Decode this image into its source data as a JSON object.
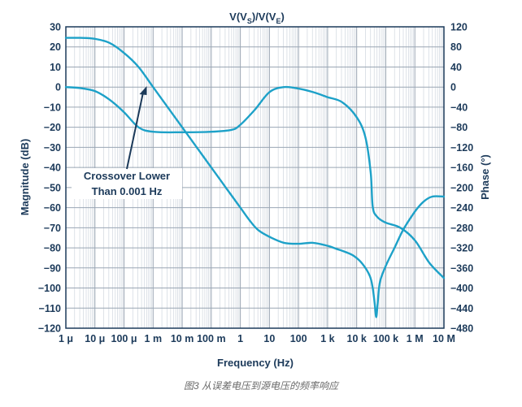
{
  "chart_data": {
    "type": "line",
    "title_parts": [
      "V(V",
      "S",
      ")/V(V",
      "E",
      ")"
    ],
    "xlabel": "Frequency (Hz)",
    "ylabel_left": "Magnitude (dB)",
    "ylabel_right": "Phase (°)",
    "x_scale": "log10",
    "xlim_exp": [
      -6,
      7
    ],
    "x_ticks": [
      {
        "exp": -6,
        "label": "1 μ"
      },
      {
        "exp": -5,
        "label": "10 μ"
      },
      {
        "exp": -4,
        "label": "100 μ"
      },
      {
        "exp": -3,
        "label": "1 m"
      },
      {
        "exp": -2,
        "label": "10 m"
      },
      {
        "exp": -1,
        "label": "100 m"
      },
      {
        "exp": 0,
        "label": "1"
      },
      {
        "exp": 1,
        "label": "10"
      },
      {
        "exp": 2,
        "label": "100"
      },
      {
        "exp": 3,
        "label": "1 k"
      },
      {
        "exp": 4,
        "label": "10 k"
      },
      {
        "exp": 5,
        "label": "100 k"
      },
      {
        "exp": 6,
        "label": "1 M"
      },
      {
        "exp": 7,
        "label": "10 M"
      }
    ],
    "ylim_left": [
      -120,
      30
    ],
    "y_ticks_left": [
      "30",
      "20",
      "10",
      "0",
      "−10",
      "−20",
      "−30",
      "−40",
      "−50",
      "−60",
      "−70",
      "−80",
      "−90",
      "−100",
      "−110",
      "−120"
    ],
    "ylim_right": [
      -480,
      120
    ],
    "y_ticks_right": [
      "120",
      "80",
      "40",
      "0",
      "−40",
      "−80",
      "−120",
      "−160",
      "−200",
      "−240",
      "−280",
      "−320",
      "−360",
      "−400",
      "−440",
      "−480"
    ],
    "grid": true,
    "line_color": "#1da1c8",
    "series": [
      {
        "name": "Magnitude",
        "axis": "left",
        "points": [
          [
            -6,
            24.5
          ],
          [
            -5.5,
            24.5
          ],
          [
            -5,
            24
          ],
          [
            -4.5,
            22
          ],
          [
            -4,
            17
          ],
          [
            -3.5,
            10
          ],
          [
            -3,
            0
          ],
          [
            -2.5,
            -10
          ],
          [
            -2,
            -20
          ],
          [
            -1.5,
            -30
          ],
          [
            -1,
            -40
          ],
          [
            -0.5,
            -50
          ],
          [
            0,
            -60
          ],
          [
            0.3,
            -66
          ],
          [
            0.6,
            -71
          ],
          [
            1,
            -74.5
          ],
          [
            1.5,
            -77.5
          ],
          [
            2,
            -78
          ],
          [
            2.5,
            -77.5
          ],
          [
            3,
            -79
          ],
          [
            3.3,
            -80.5
          ],
          [
            3.6,
            -82
          ],
          [
            3.9,
            -84
          ],
          [
            4.2,
            -88
          ],
          [
            4.45,
            -94
          ],
          [
            4.55,
            -100
          ],
          [
            4.62,
            -108
          ],
          [
            4.67,
            -114.5
          ],
          [
            4.72,
            -108
          ],
          [
            4.8,
            -97
          ],
          [
            5,
            -89
          ],
          [
            5.3,
            -80
          ],
          [
            5.6,
            -71
          ],
          [
            6,
            -62
          ],
          [
            6.3,
            -57
          ],
          [
            6.6,
            -54.5
          ],
          [
            7,
            -54.5
          ]
        ]
      },
      {
        "name": "Phase",
        "axis": "right",
        "points": [
          [
            -6,
            0
          ],
          [
            -5.5,
            -2
          ],
          [
            -5,
            -8
          ],
          [
            -4.5,
            -25
          ],
          [
            -4,
            -50
          ],
          [
            -3.5,
            -80
          ],
          [
            -3,
            -89
          ],
          [
            -2,
            -90
          ],
          [
            -1,
            -89
          ],
          [
            -0.3,
            -85
          ],
          [
            0,
            -75
          ],
          [
            0.5,
            -45
          ],
          [
            1,
            -10
          ],
          [
            1.5,
            0
          ],
          [
            2,
            -3
          ],
          [
            2.5,
            -10
          ],
          [
            3,
            -20
          ],
          [
            3.5,
            -30
          ],
          [
            4,
            -60
          ],
          [
            4.3,
            -100
          ],
          [
            4.48,
            -170
          ],
          [
            4.55,
            -238
          ],
          [
            4.7,
            -258
          ],
          [
            5,
            -270
          ],
          [
            5.5,
            -280
          ],
          [
            6,
            -305
          ],
          [
            6.5,
            -350
          ],
          [
            7,
            -380
          ]
        ]
      }
    ],
    "annotation": {
      "lines": [
        "Crossover Lower",
        "Than 0.001 Hz"
      ],
      "points_to": [
        -3,
        0
      ]
    }
  },
  "caption": "图3 从误差电压到源电压的频率响应"
}
